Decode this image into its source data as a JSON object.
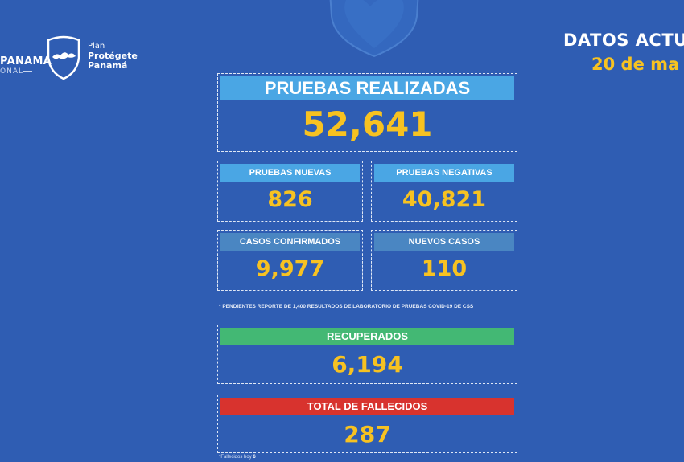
{
  "branding": {
    "left_logo_title": "PANAMÁ",
    "left_logo_sub": "ONAL",
    "plan_line1": "Plan",
    "plan_line2": "Protégete",
    "plan_line3": "Panamá"
  },
  "header": {
    "title": "DATOS ACTUA",
    "date": "20 de ma"
  },
  "stats": {
    "pruebas_realizadas": {
      "label": "PRUEBAS REALIZADAS",
      "value": "52,641"
    },
    "pruebas_nuevas": {
      "label": "PRUEBAS NUEVAS",
      "value": "826"
    },
    "pruebas_negativas": {
      "label": "PRUEBAS NEGATIVAS",
      "value": "40,821"
    },
    "casos_confirmados": {
      "label": "CASOS CONFIRMADOS",
      "value": "9,977"
    },
    "nuevos_casos": {
      "label": "NUEVOS CASOS",
      "value": "110"
    },
    "recuperados": {
      "label": "RECUPERADOS",
      "value": "6,194"
    },
    "total_fallecidos": {
      "label": "TOTAL DE FALLECIDOS",
      "value": "287"
    }
  },
  "notes": {
    "pending": "* PENDIENTES REPORTE DE 1,400 RESULTADOS DE LABORATORIO DE PRUEBAS COVID-19  DE CSS",
    "fallecidos_hoy_label": "*Fallecidos hoy",
    "fallecidos_hoy_value": "6"
  },
  "colors": {
    "background": "#2f5db3",
    "value_yellow": "#f7c221",
    "header_light_blue": "#4aa6e4",
    "header_steel_blue": "#4a86c2",
    "header_green": "#43b874",
    "header_red": "#d8332e"
  },
  "icons": {
    "top_emblem": "shield-heart-icon",
    "plan_logo": "panama-shield-icon"
  }
}
